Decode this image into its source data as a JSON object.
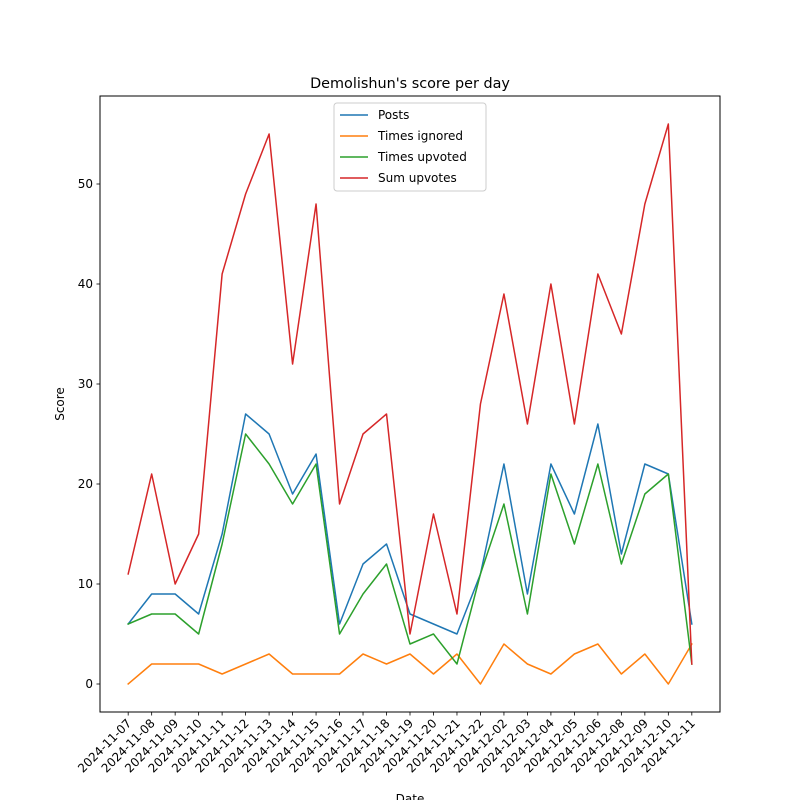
{
  "chart_data": {
    "type": "line",
    "title": "Demolishun's score per day",
    "xlabel": "Date",
    "ylabel": "Score",
    "x": [
      "2024-11-07",
      "2024-11-08",
      "2024-11-09",
      "2024-11-10",
      "2024-11-11",
      "2024-11-12",
      "2024-11-13",
      "2024-11-14",
      "2024-11-15",
      "2024-11-16",
      "2024-11-17",
      "2024-11-18",
      "2024-11-19",
      "2024-11-20",
      "2024-11-21",
      "2024-11-22",
      "2024-12-02",
      "2024-12-03",
      "2024-12-04",
      "2024-12-05",
      "2024-12-06",
      "2024-12-08",
      "2024-12-09",
      "2024-12-10",
      "2024-12-11"
    ],
    "ylim": [
      -2.8,
      58.8
    ],
    "yticks": [
      0,
      10,
      20,
      30,
      40,
      50
    ],
    "grid": false,
    "legend_position": "top-center",
    "series": [
      {
        "name": "Posts",
        "color": "#1f77b4",
        "values": [
          6,
          9,
          9,
          7,
          15,
          27,
          25,
          19,
          23,
          6,
          12,
          14,
          7,
          6,
          5,
          11,
          22,
          9,
          22,
          17,
          26,
          13,
          22,
          21,
          6
        ]
      },
      {
        "name": "Times ignored",
        "color": "#ff7f0e",
        "values": [
          0,
          2,
          2,
          2,
          1,
          2,
          3,
          1,
          1,
          1,
          3,
          2,
          3,
          1,
          3,
          0,
          4,
          2,
          1,
          3,
          4,
          1,
          3,
          0,
          4
        ]
      },
      {
        "name": "Times upvoted",
        "color": "#2ca02c",
        "values": [
          6,
          7,
          7,
          5,
          14,
          25,
          22,
          18,
          22,
          5,
          9,
          12,
          4,
          5,
          2,
          11,
          18,
          7,
          21,
          14,
          22,
          12,
          19,
          21,
          2
        ]
      },
      {
        "name": "Sum upvotes",
        "color": "#d62728",
        "values": [
          11,
          21,
          10,
          15,
          41,
          49,
          55,
          32,
          48,
          18,
          25,
          27,
          5,
          17,
          7,
          28,
          39,
          26,
          40,
          26,
          41,
          35,
          48,
          56,
          2
        ]
      }
    ]
  }
}
